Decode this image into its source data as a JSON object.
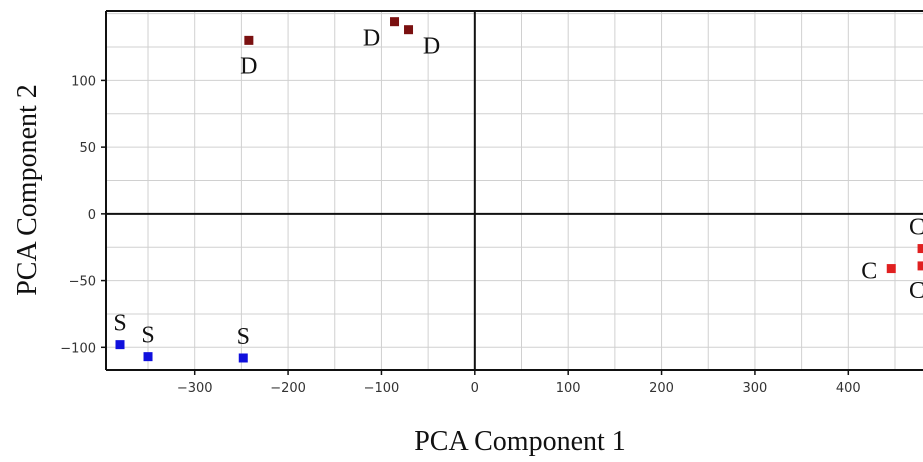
{
  "chart_data": {
    "type": "scatter",
    "title": "",
    "xlabel": "PCA Component 1",
    "ylabel": "PCA Component 2",
    "xlim": [
      -395,
      480
    ],
    "ylim": [
      -117,
      152
    ],
    "x_ticks": [
      -300,
      -200,
      -100,
      0,
      100,
      200,
      300,
      400
    ],
    "y_ticks": [
      -100,
      -50,
      0,
      50,
      100
    ],
    "grid": true,
    "zero_lines": true,
    "series": [
      {
        "color": "#1010dd",
        "points": [
          {
            "x": -380,
            "y": -98,
            "label": "S"
          },
          {
            "x": -350,
            "y": -107,
            "label": "S"
          },
          {
            "x": -248,
            "y": -108,
            "label": "S"
          }
        ]
      },
      {
        "color": "#7a1010",
        "points": [
          {
            "x": -242,
            "y": 130,
            "label": "D"
          },
          {
            "x": -86,
            "y": 144,
            "label": "D"
          },
          {
            "x": -71,
            "y": 138,
            "label": "D"
          }
        ]
      },
      {
        "color": "#e02020",
        "points": [
          {
            "x": 446,
            "y": -41,
            "label": "C"
          },
          {
            "x": 479,
            "y": -26,
            "label": "C"
          },
          {
            "x": 479,
            "y": -39,
            "label": "C"
          }
        ]
      }
    ]
  }
}
